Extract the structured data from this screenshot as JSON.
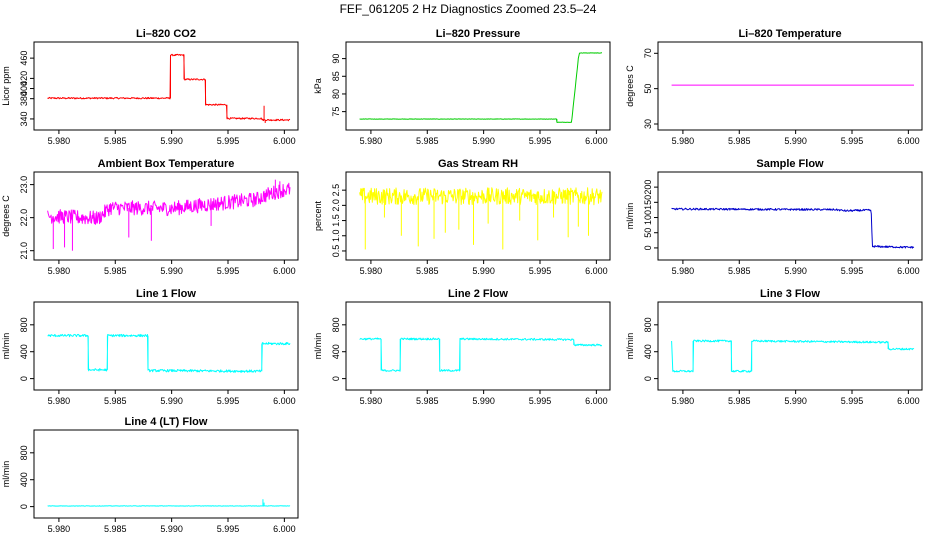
{
  "title": "FEF_061205  2 Hz Diagnostics Zoomed 23.5–24",
  "chart_data": [
    {
      "type": "line",
      "title": "Li–820 CO2",
      "ylabel": "Licor ppm",
      "color": "#ff0000",
      "xlim": [
        5.9785,
        6.0005
      ],
      "ylim": [
        330,
        480
      ],
      "xticks": [
        5.98,
        5.985,
        5.99,
        5.995,
        6.0
      ],
      "xtick_labels": [
        "5.980",
        "5.985",
        "5.990",
        "5.995",
        "6.000"
      ],
      "yticks": [
        340,
        380,
        400,
        420,
        460
      ],
      "ytick_labels": [
        "340",
        "380",
        "400",
        "420",
        "460"
      ],
      "noise": 1.5,
      "points": [
        [
          5.979,
          381
        ],
        [
          5.9899,
          381
        ],
        [
          5.9899,
          466
        ],
        [
          5.9911,
          466
        ],
        [
          5.9911,
          418
        ],
        [
          5.993,
          418
        ],
        [
          5.993,
          368
        ],
        [
          5.9949,
          368
        ],
        [
          5.9949,
          341
        ],
        [
          5.998,
          341
        ],
        [
          5.998,
          338
        ],
        [
          6.0,
          338
        ]
      ],
      "spikes": [
        [
          5.9982,
          366
        ],
        [
          5.9983,
          332
        ]
      ]
    },
    {
      "type": "line",
      "title": "Li–820 Pressure",
      "ylabel": "kPa",
      "color": "#00cc00",
      "xlim": [
        5.9785,
        6.0005
      ],
      "ylim": [
        71.5,
        93
      ],
      "xticks": [
        5.98,
        5.985,
        5.99,
        5.995,
        6.0
      ],
      "xtick_labels": [
        "5.980",
        "5.985",
        "5.990",
        "5.995",
        "6.000"
      ],
      "yticks": [
        75,
        80,
        85,
        90
      ],
      "ytick_labels": [
        "75",
        "80",
        "85",
        "90"
      ],
      "noise": 0.05,
      "points": [
        [
          5.979,
          72.9
        ],
        [
          5.9965,
          72.9
        ],
        [
          5.9965,
          72.0
        ],
        [
          5.9978,
          72.0
        ],
        [
          5.9982,
          84
        ],
        [
          5.9984,
          90
        ],
        [
          5.9985,
          91.6
        ],
        [
          6.0,
          91.6
        ]
      ]
    },
    {
      "type": "line",
      "title": "Li–820 Temperature",
      "ylabel": "degrees C",
      "color": "#ff00ff",
      "xlim": [
        5.9785,
        6.0005
      ],
      "ylim": [
        30,
        73
      ],
      "xticks": [
        5.98,
        5.985,
        5.99,
        5.995,
        6.0
      ],
      "xtick_labels": [
        "5.980",
        "5.985",
        "5.990",
        "5.995",
        "6.000"
      ],
      "yticks": [
        30,
        50,
        70
      ],
      "ytick_labels": [
        "30",
        "50",
        "70"
      ],
      "noise": 0,
      "points": [
        [
          5.979,
          52
        ],
        [
          6.0,
          52
        ]
      ]
    },
    {
      "type": "line",
      "title": "Ambient Box Temperature",
      "ylabel": "degrees C",
      "color": "#ff00ff",
      "xlim": [
        5.9785,
        6.0005
      ],
      "ylim": [
        20.9,
        23.2
      ],
      "xticks": [
        5.98,
        5.985,
        5.99,
        5.995,
        6.0
      ],
      "xtick_labels": [
        "5.980",
        "5.985",
        "5.990",
        "5.995",
        "6.000"
      ],
      "yticks": [
        21.0,
        22.0,
        23.0
      ],
      "ytick_labels": [
        "21.0",
        "22.0",
        "23.0"
      ],
      "noise": 0.22,
      "points": [
        [
          5.979,
          22.05
        ],
        [
          5.9835,
          21.98
        ],
        [
          5.9845,
          22.3
        ],
        [
          5.99,
          22.28
        ],
        [
          5.9975,
          22.55
        ],
        [
          5.9985,
          22.7
        ],
        [
          6.0,
          22.85
        ]
      ],
      "spikes": [
        [
          5.9795,
          21.05
        ],
        [
          5.9805,
          21.1
        ],
        [
          5.9812,
          21.0
        ],
        [
          5.9862,
          21.4
        ],
        [
          5.9882,
          21.3
        ],
        [
          5.9935,
          21.75
        ],
        [
          5.9992,
          23.15
        ],
        [
          5.9996,
          23.1
        ]
      ]
    },
    {
      "type": "line",
      "title": "Gas Stream RH",
      "ylabel": "percent",
      "color": "#ffff00",
      "xlim": [
        5.9785,
        6.0005
      ],
      "ylim": [
        0.4,
        2.9
      ],
      "xticks": [
        5.98,
        5.985,
        5.99,
        5.995,
        6.0
      ],
      "xtick_labels": [
        "5.980",
        "5.985",
        "5.990",
        "5.995",
        "6.000"
      ],
      "yticks": [
        0.5,
        1.0,
        1.5,
        2.0,
        2.5
      ],
      "ytick_labels": [
        "0.5",
        "1.0",
        "1.5",
        "2.0",
        "2.5"
      ],
      "noise": 0.28,
      "points": [
        [
          5.979,
          2.3
        ],
        [
          6.0,
          2.3
        ]
      ],
      "spikes": [
        [
          5.9795,
          0.55
        ],
        [
          5.9812,
          1.6
        ],
        [
          5.9827,
          1.0
        ],
        [
          5.9842,
          0.65
        ],
        [
          5.9856,
          0.9
        ],
        [
          5.9866,
          1.1
        ],
        [
          5.9878,
          1.2
        ],
        [
          5.9891,
          0.7
        ],
        [
          5.9904,
          1.4
        ],
        [
          5.9917,
          0.55
        ],
        [
          5.9932,
          1.5
        ],
        [
          5.9948,
          0.85
        ],
        [
          5.9962,
          1.6
        ],
        [
          5.9975,
          0.95
        ],
        [
          5.9984,
          1.3
        ],
        [
          5.9993,
          1.0
        ]
      ]
    },
    {
      "type": "line",
      "title": "Sample Flow",
      "ylabel": "ml/min",
      "color": "#0000cc",
      "xlim": [
        5.9785,
        6.0005
      ],
      "ylim": [
        -20,
        230
      ],
      "xticks": [
        5.98,
        5.985,
        5.99,
        5.995,
        6.0
      ],
      "xtick_labels": [
        "5.980",
        "5.985",
        "5.990",
        "5.995",
        "6.000"
      ],
      "yticks": [
        0,
        50,
        100,
        150,
        200
      ],
      "ytick_labels": [
        "0",
        "50",
        "100",
        "150",
        "200"
      ],
      "noise": 3,
      "points": [
        [
          5.979,
          128
        ],
        [
          5.9935,
          126
        ],
        [
          5.9945,
          122
        ],
        [
          5.996,
          124
        ],
        [
          5.9967,
          124
        ],
        [
          5.9968,
          5
        ],
        [
          6.0,
          2
        ]
      ]
    },
    {
      "type": "line",
      "title": "Line 1 Flow",
      "ylabel": "ml/min",
      "color": "#00ffff",
      "xlim": [
        5.9785,
        6.0005
      ],
      "ylim": [
        -80,
        1050
      ],
      "xticks": [
        5.98,
        5.985,
        5.99,
        5.995,
        6.0
      ],
      "xtick_labels": [
        "5.980",
        "5.985",
        "5.990",
        "5.995",
        "6.000"
      ],
      "yticks": [
        0,
        400,
        800
      ],
      "ytick_labels": [
        "0",
        "400",
        "800"
      ],
      "noise": 18,
      "points": [
        [
          5.979,
          640
        ],
        [
          5.9826,
          640
        ],
        [
          5.9826,
          130
        ],
        [
          5.9843,
          130
        ],
        [
          5.9843,
          640
        ],
        [
          5.9879,
          640
        ],
        [
          5.9879,
          120
        ],
        [
          5.998,
          110
        ],
        [
          5.998,
          520
        ],
        [
          6.0,
          520
        ]
      ]
    },
    {
      "type": "line",
      "title": "Line 2 Flow",
      "ylabel": "ml/min",
      "color": "#00ffff",
      "xlim": [
        5.9785,
        6.0005
      ],
      "ylim": [
        -80,
        1050
      ],
      "xticks": [
        5.98,
        5.985,
        5.99,
        5.995,
        6.0
      ],
      "xtick_labels": [
        "5.980",
        "5.985",
        "5.990",
        "5.995",
        "6.000"
      ],
      "yticks": [
        0,
        400,
        800
      ],
      "ytick_labels": [
        "0",
        "400",
        "800"
      ],
      "noise": 14,
      "points": [
        [
          5.979,
          590
        ],
        [
          5.9809,
          590
        ],
        [
          5.9809,
          120
        ],
        [
          5.9826,
          120
        ],
        [
          5.9826,
          590
        ],
        [
          5.9861,
          590
        ],
        [
          5.9861,
          120
        ],
        [
          5.9879,
          120
        ],
        [
          5.9879,
          590
        ],
        [
          5.998,
          580
        ],
        [
          5.998,
          500
        ],
        [
          6.0,
          500
        ]
      ]
    },
    {
      "type": "line",
      "title": "Line 3 Flow",
      "ylabel": "ml/min",
      "color": "#00ffff",
      "xlim": [
        5.9785,
        6.0005
      ],
      "ylim": [
        -80,
        1050
      ],
      "xticks": [
        5.98,
        5.985,
        5.99,
        5.995,
        6.0
      ],
      "xtick_labels": [
        "5.980",
        "5.985",
        "5.990",
        "5.995",
        "6.000"
      ],
      "yticks": [
        0,
        400,
        800
      ],
      "ytick_labels": [
        "0",
        "400",
        "800"
      ],
      "noise": 14,
      "points": [
        [
          5.979,
          560
        ],
        [
          5.9791,
          110
        ],
        [
          5.9809,
          110
        ],
        [
          5.9809,
          560
        ],
        [
          5.9843,
          560
        ],
        [
          5.9843,
          110
        ],
        [
          5.9861,
          110
        ],
        [
          5.9861,
          560
        ],
        [
          5.9982,
          540
        ],
        [
          5.9982,
          440
        ],
        [
          6.0,
          440
        ]
      ]
    },
    {
      "type": "line",
      "title": "Line 4 (LT) Flow",
      "ylabel": "ml/min",
      "color": "#00ffff",
      "xlim": [
        5.9785,
        6.0005
      ],
      "ylim": [
        -80,
        1050
      ],
      "xticks": [
        5.98,
        5.985,
        5.99,
        5.995,
        6.0
      ],
      "xtick_labels": [
        "5.980",
        "5.985",
        "5.990",
        "5.995",
        "6.000"
      ],
      "yticks": [
        0,
        400,
        800
      ],
      "ytick_labels": [
        "0",
        "400",
        "800"
      ],
      "noise": 3,
      "points": [
        [
          5.979,
          10
        ],
        [
          6.0,
          10
        ]
      ],
      "spikes": [
        [
          5.9981,
          110
        ],
        [
          5.9982,
          60
        ]
      ]
    }
  ]
}
